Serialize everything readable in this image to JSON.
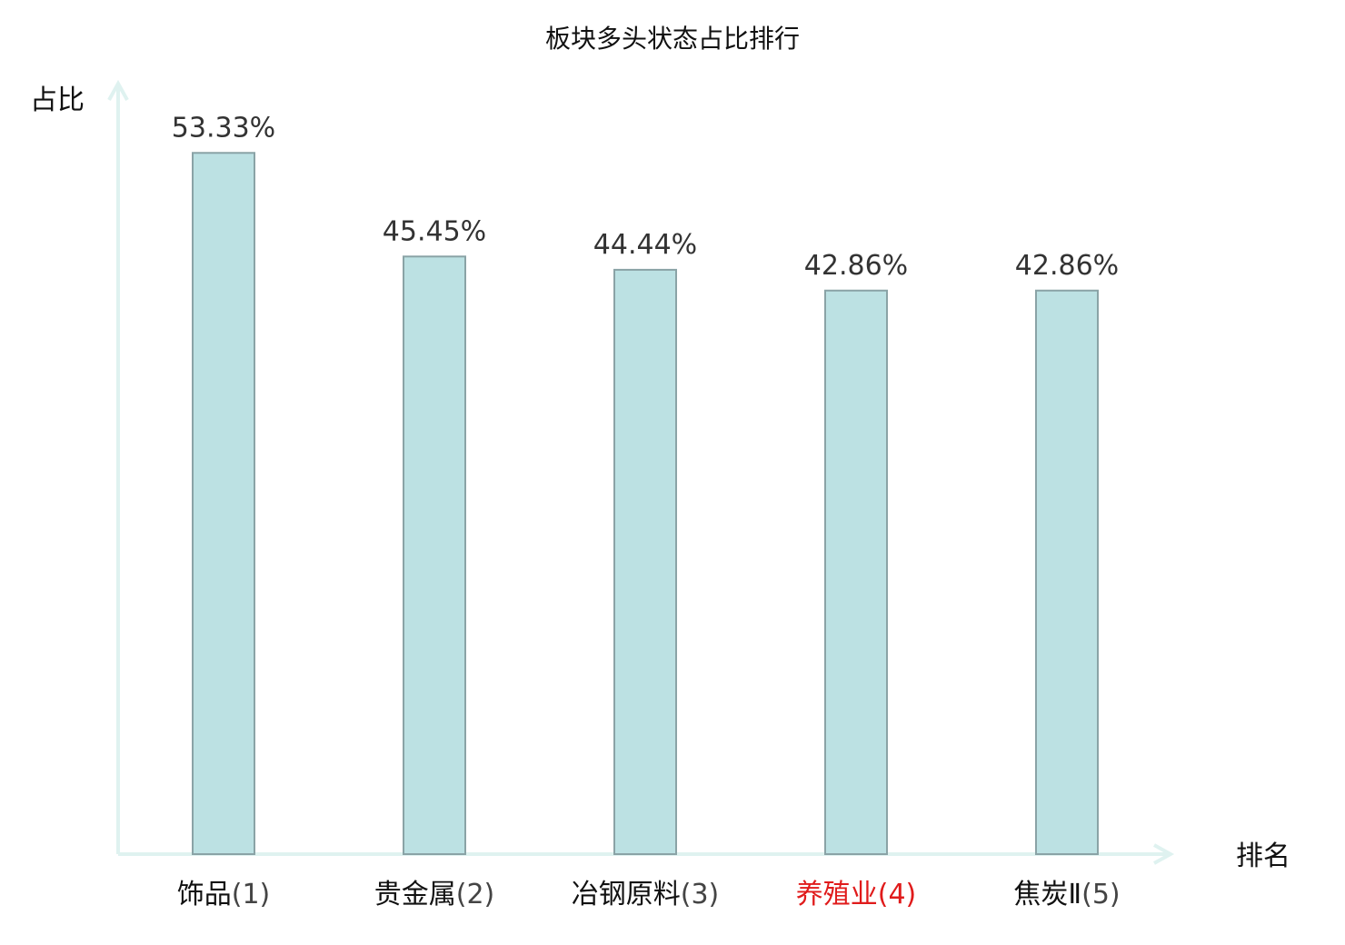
{
  "chart_data": {
    "type": "bar",
    "title": "板块多头状态占比排行",
    "ylabel": "占比",
    "xlabel": "排名",
    "categories": [
      {
        "name": "饰品",
        "rank": "(1)"
      },
      {
        "name": "贵金属",
        "rank": "(2)"
      },
      {
        "name": "冶钢原料",
        "rank": "(3)"
      },
      {
        "name": "养殖业",
        "rank": "(4)",
        "highlight": true
      },
      {
        "name": "焦炭Ⅱ",
        "rank": "(5)"
      }
    ],
    "values": [
      53.33,
      45.45,
      44.44,
      42.86,
      42.86
    ],
    "value_labels": [
      "53.33%",
      "45.45%",
      "44.44%",
      "42.86%",
      "42.86%"
    ],
    "unit": "%",
    "ylim": [
      0,
      58.6
    ],
    "grid": false,
    "colors": {
      "bar_fill": "#bce1e3",
      "bar_stroke": "#8aa3a6",
      "axis": "#dff2f0",
      "text": "#111111",
      "value_text": "#333333",
      "rank_text": "#444444",
      "highlight": "#e01b1b"
    }
  }
}
